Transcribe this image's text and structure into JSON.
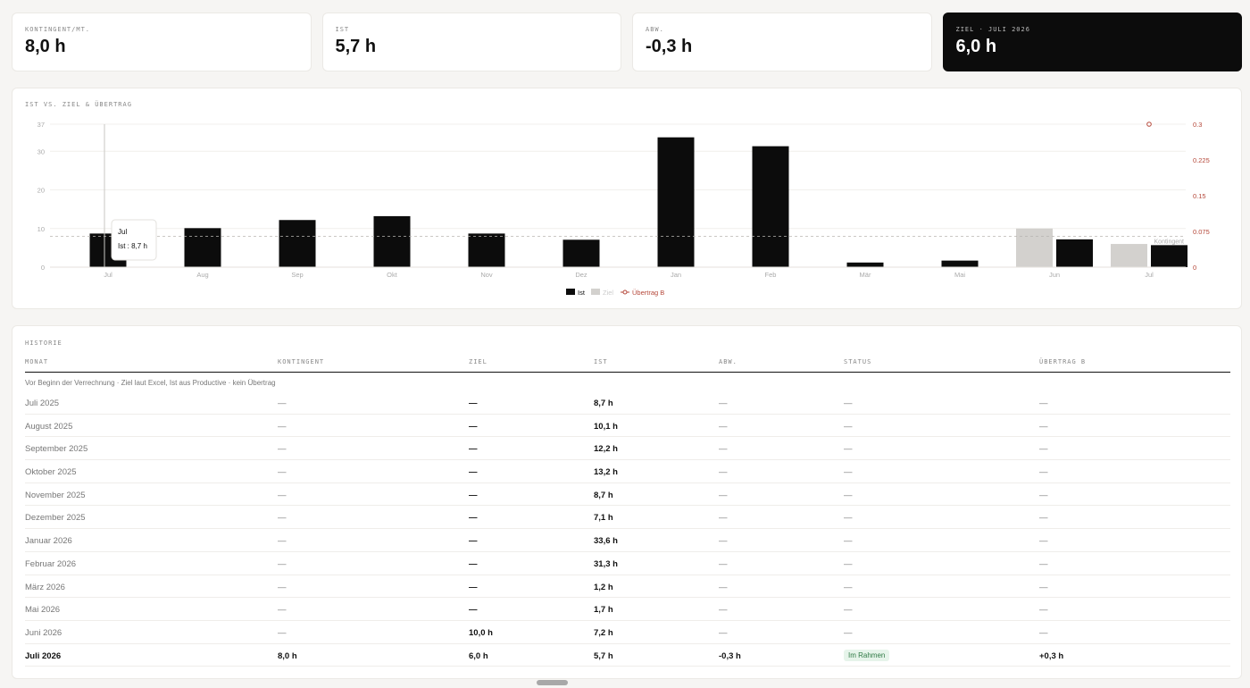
{
  "kpis": [
    {
      "label": "KONTINGENT/MT.",
      "value": "8,0 h",
      "dark": false
    },
    {
      "label": "IST",
      "value": "5,7 h",
      "dark": false
    },
    {
      "label": "ABW.",
      "value": "-0,3 h",
      "dark": false
    },
    {
      "label": "ZIEL · JULI 2026",
      "value": "6,0 h",
      "dark": true
    }
  ],
  "chart": {
    "title": "IST VS. ZIEL & ÜBERTRAG",
    "kontingent_label": "Kontingent",
    "tooltip": {
      "title": "Jul",
      "text": "Ist : 8,7 h"
    },
    "legend": {
      "ist": "Ist",
      "ziel": "Ziel",
      "uebertrag": "Übertrag B"
    }
  },
  "chart_data": {
    "type": "bar",
    "categories": [
      "Jul",
      "Aug",
      "Sep",
      "Okt",
      "Nov",
      "Dez",
      "Jan",
      "Feb",
      "Mär",
      "Mai",
      "Jun",
      "Jul"
    ],
    "series": [
      {
        "name": "Ist",
        "values": [
          8.7,
          10.1,
          12.2,
          13.2,
          8.7,
          7.1,
          33.6,
          31.3,
          1.2,
          1.7,
          7.2,
          5.7
        ],
        "color": "#0c0c0c"
      },
      {
        "name": "Ziel",
        "values": [
          null,
          null,
          null,
          null,
          null,
          null,
          null,
          null,
          null,
          null,
          10.0,
          6.0
        ],
        "color": "#d3d1ce"
      },
      {
        "name": "Übertrag B",
        "type": "line",
        "axis": "right",
        "values": [
          null,
          null,
          null,
          null,
          null,
          null,
          null,
          null,
          null,
          null,
          null,
          0.3
        ],
        "color": "#b5483a"
      }
    ],
    "reference_line": {
      "label": "Kontingent",
      "value": 8.0
    },
    "yticks_left": [
      "0",
      "10",
      "20",
      "30",
      "37"
    ],
    "yticks_right": [
      "0",
      "0.075",
      "0.15",
      "0.225",
      "0.3"
    ],
    "ylim_left": [
      0,
      37
    ],
    "ylim_right": [
      0,
      0.3
    ],
    "legend": "bottom-center",
    "grid": true
  },
  "table": {
    "title": "HISTORIE",
    "headers": [
      "MONAT",
      "KONTINGENT",
      "ZIEL",
      "IST",
      "ABW.",
      "STATUS",
      "ÜBERTRAG B"
    ],
    "note": "Vor Beginn der Verrechnung · Ziel laut Excel, Ist aus Productive · kein Übertrag",
    "rows": [
      {
        "monat": "Juli 2025",
        "kontingent": "—",
        "ziel": "—",
        "ist": "8,7 h",
        "abw": "—",
        "status": "—",
        "uebertrag": "—"
      },
      {
        "monat": "August 2025",
        "kontingent": "—",
        "ziel": "—",
        "ist": "10,1 h",
        "abw": "—",
        "status": "—",
        "uebertrag": "—"
      },
      {
        "monat": "September 2025",
        "kontingent": "—",
        "ziel": "—",
        "ist": "12,2 h",
        "abw": "—",
        "status": "—",
        "uebertrag": "—"
      },
      {
        "monat": "Oktober 2025",
        "kontingent": "—",
        "ziel": "—",
        "ist": "13,2 h",
        "abw": "—",
        "status": "—",
        "uebertrag": "—"
      },
      {
        "monat": "November 2025",
        "kontingent": "—",
        "ziel": "—",
        "ist": "8,7 h",
        "abw": "—",
        "status": "—",
        "uebertrag": "—"
      },
      {
        "monat": "Dezember 2025",
        "kontingent": "—",
        "ziel": "—",
        "ist": "7,1 h",
        "abw": "—",
        "status": "—",
        "uebertrag": "—"
      },
      {
        "monat": "Januar 2026",
        "kontingent": "—",
        "ziel": "—",
        "ist": "33,6 h",
        "abw": "—",
        "status": "—",
        "uebertrag": "—"
      },
      {
        "monat": "Februar 2026",
        "kontingent": "—",
        "ziel": "—",
        "ist": "31,3 h",
        "abw": "—",
        "status": "—",
        "uebertrag": "—"
      },
      {
        "monat": "März 2026",
        "kontingent": "—",
        "ziel": "—",
        "ist": "1,2 h",
        "abw": "—",
        "status": "—",
        "uebertrag": "—"
      },
      {
        "monat": "Mai 2026",
        "kontingent": "—",
        "ziel": "—",
        "ist": "1,7 h",
        "abw": "—",
        "status": "—",
        "uebertrag": "—"
      },
      {
        "monat": "Juni 2026",
        "kontingent": "—",
        "ziel": "10,0 h",
        "ist": "7,2 h",
        "abw": "—",
        "status": "—",
        "uebertrag": "—"
      },
      {
        "monat": "Juli 2026",
        "kontingent": "8,0 h",
        "ziel": "6,0 h",
        "ist": "5,7 h",
        "abw": "-0,3 h",
        "status": "Im Rahmen",
        "uebertrag": "+0,3 h",
        "current": true
      }
    ]
  }
}
